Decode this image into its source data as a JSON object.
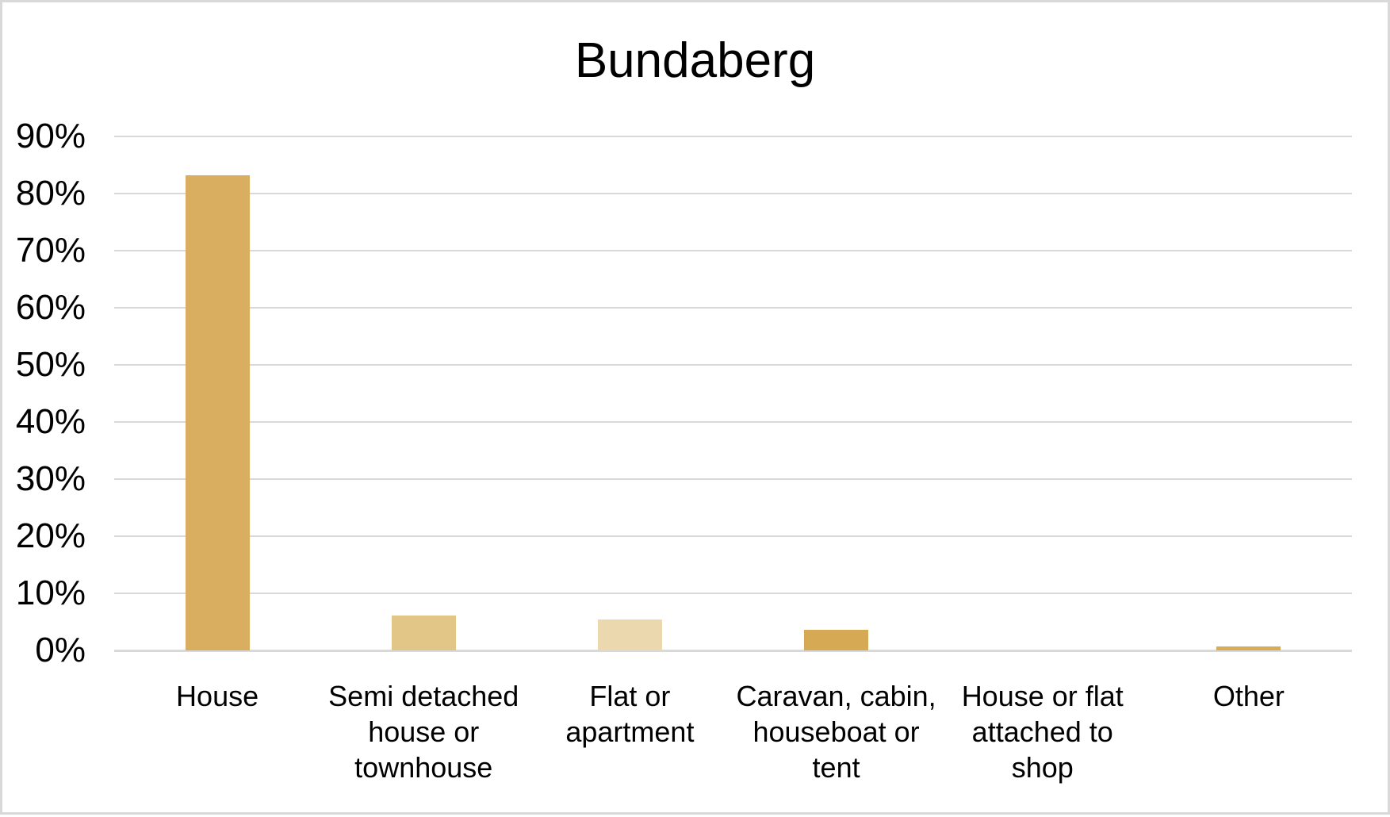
{
  "chart_data": {
    "type": "bar",
    "title": "Bundaberg",
    "xlabel": "",
    "ylabel": "",
    "ylim": [
      0,
      90
    ],
    "ytick_step_percent": 10,
    "yticks": [
      "0%",
      "10%",
      "20%",
      "30%",
      "40%",
      "50%",
      "60%",
      "70%",
      "80%",
      "90%"
    ],
    "grid": true,
    "legend": false,
    "categories": [
      "House",
      "Semi detached house or townhouse",
      "Flat or apartment",
      "Caravan, cabin, houseboat or tent",
      "House or flat attached to shop",
      "Other"
    ],
    "category_label_lines": [
      [
        "House"
      ],
      [
        "Semi detached",
        "house or",
        "townhouse"
      ],
      [
        "Flat or",
        "apartment"
      ],
      [
        "Caravan, cabin,",
        "houseboat or",
        "tent"
      ],
      [
        "House or flat",
        "attached to",
        "shop"
      ],
      [
        "Other"
      ]
    ],
    "values": [
      83.2,
      6.1,
      5.4,
      3.6,
      0,
      0.7
    ],
    "unit": "%",
    "bar_colors": [
      "#D9AE60",
      "#E2C687",
      "#EBD8AE",
      "#D6A955",
      "#D9AE60",
      "#D8AB57"
    ],
    "colors": {
      "gridline": "#D9D9D9",
      "axis_line": "#D9D9D9",
      "text": "#000000",
      "frame_border": "#D9D9D9",
      "background": "#FFFFFF"
    }
  }
}
